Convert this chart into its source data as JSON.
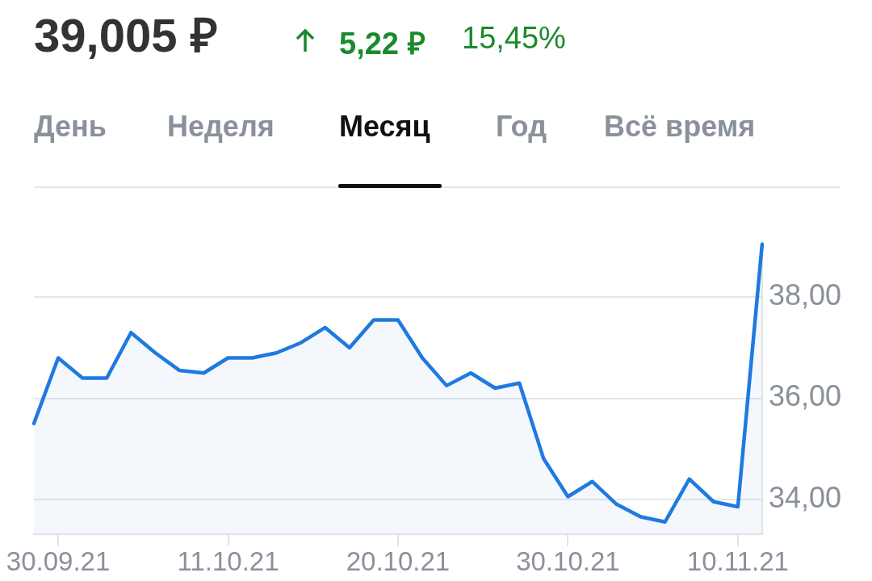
{
  "chart_data": {
    "type": "area",
    "title": "39,005 ₽",
    "annotations": [
      "5,22 ₽",
      "15,45%",
      "День",
      "Неделя",
      "Месяц",
      "Год",
      "Всё время"
    ],
    "categories": [
      null,
      "30.09.21",
      null,
      null,
      null,
      null,
      null,
      null,
      "11.10.21",
      null,
      null,
      null,
      null,
      null,
      null,
      "20.10.21",
      null,
      null,
      null,
      null,
      null,
      null,
      "30.10.21",
      null,
      null,
      null,
      null,
      null,
      null,
      "10.11.21",
      null
    ],
    "series": [
      {
        "color": "#1f7ae0",
        "values": [
          35.5,
          36.8,
          36.4,
          36.4,
          37.3,
          36.9,
          36.55,
          36.5,
          36.8,
          36.8,
          36.9,
          37.1,
          37.4,
          37.0,
          37.55,
          37.55,
          36.8,
          36.25,
          36.5,
          36.2,
          36.3,
          34.8,
          34.05,
          34.35,
          33.9,
          33.65,
          33.55,
          34.4,
          33.95,
          33.85,
          39.05
        ]
      }
    ],
    "ylim": [
      33.3,
      39.1
    ],
    "yticks": [
      {
        "value": 34,
        "label": "34,00"
      },
      {
        "value": 36,
        "label": "36,00"
      },
      {
        "value": 38,
        "label": "38,00"
      }
    ],
    "grid": "y",
    "legend": false,
    "marker": "none",
    "line_style": "solid"
  }
}
